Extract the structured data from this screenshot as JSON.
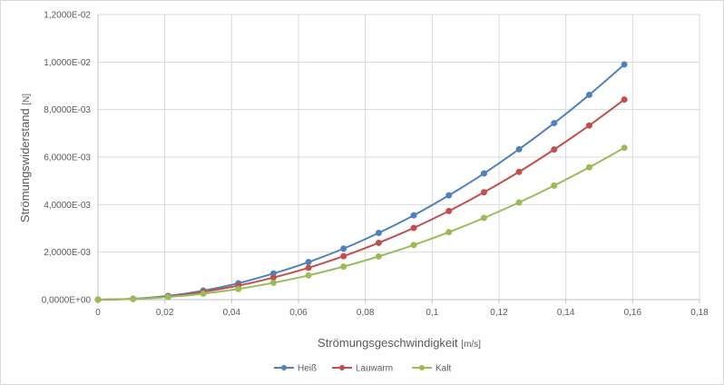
{
  "chart_data": {
    "type": "line",
    "xlabel": "Strömungsgeschwindigkeit",
    "xlabel_unit": "[m/s]",
    "ylabel": "Strömungswiderstand",
    "ylabel_unit": "[N]",
    "xlim": [
      0,
      0.18
    ],
    "ylim": [
      0,
      0.012
    ],
    "x_ticks": [
      0,
      0.02,
      0.04,
      0.06,
      0.08,
      0.1,
      0.12,
      0.14,
      0.16,
      0.18
    ],
    "x_tick_labels": [
      "0",
      "0,02",
      "0,04",
      "0,06",
      "0,08",
      "0,1",
      "0,12",
      "0,14",
      "0,16",
      "0,18"
    ],
    "y_ticks": [
      0,
      0.002,
      0.004,
      0.006,
      0.008,
      0.01,
      0.012
    ],
    "y_tick_labels": [
      "0,0000E+00",
      "2,0000E-03",
      "4,0000E-03",
      "6,0000E-03",
      "8,0000E-03",
      "1,0000E-02",
      "1,2000E-02"
    ],
    "grid": true,
    "legend_position": "bottom",
    "x": [
      0,
      0.0105,
      0.021,
      0.0315,
      0.042,
      0.0525,
      0.063,
      0.0735,
      0.084,
      0.0945,
      0.105,
      0.1155,
      0.126,
      0.1365,
      0.147,
      0.1575
    ],
    "series": [
      {
        "name": "Heiß",
        "color": "#4f81bd",
        "values": [
          0,
          4e-05,
          0.00016,
          0.00038,
          0.00069,
          0.0011,
          0.00158,
          0.00215,
          0.00281,
          0.00355,
          0.00439,
          0.00531,
          0.00633,
          0.00743,
          0.00862,
          0.0099
        ]
      },
      {
        "name": "Lauwarm",
        "color": "#c0504d",
        "values": [
          0,
          3e-05,
          0.00013,
          0.00033,
          0.00059,
          0.00093,
          0.00134,
          0.00183,
          0.00239,
          0.00302,
          0.00373,
          0.00452,
          0.00538,
          0.00632,
          0.00733,
          0.00842
        ]
      },
      {
        "name": "Kalt",
        "color": "#9bbb59",
        "values": [
          0,
          3e-05,
          0.00011,
          0.00025,
          0.00045,
          0.00071,
          0.00102,
          0.00139,
          0.00182,
          0.0023,
          0.00284,
          0.00344,
          0.00409,
          0.0048,
          0.00557,
          0.00639
        ]
      }
    ]
  }
}
